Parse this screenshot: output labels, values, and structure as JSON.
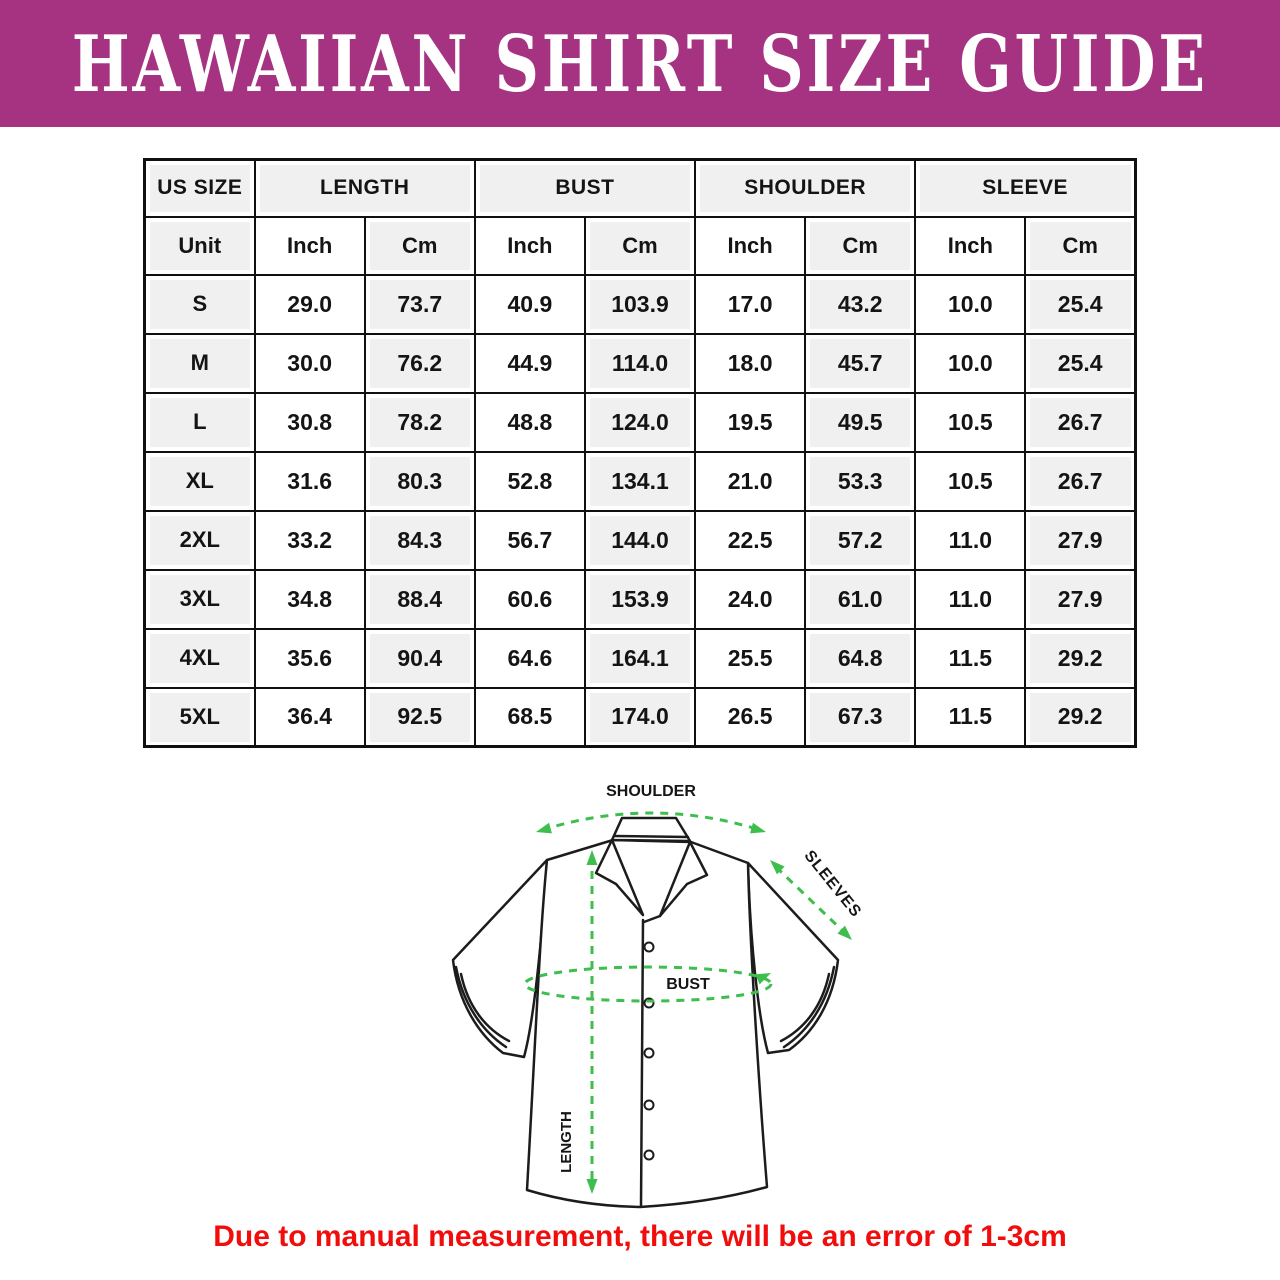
{
  "banner": {
    "title": "HAWAIIAN SHIRT SIZE GUIDE",
    "bg_color": "#a53381",
    "text_color": "#ffffff"
  },
  "table": {
    "groups": [
      {
        "label": "US SIZE",
        "span": 1
      },
      {
        "label": "LENGTH",
        "span": 2
      },
      {
        "label": "BUST",
        "span": 2
      },
      {
        "label": "SHOULDER",
        "span": 2
      },
      {
        "label": "SLEEVE",
        "span": 2
      }
    ],
    "unit_row": [
      "Unit",
      "Inch",
      "Cm",
      "Inch",
      "Cm",
      "Inch",
      "Cm",
      "Inch",
      "Cm"
    ],
    "rows": [
      {
        "size": "S",
        "values": [
          "29.0",
          "73.7",
          "40.9",
          "103.9",
          "17.0",
          "43.2",
          "10.0",
          "25.4"
        ]
      },
      {
        "size": "M",
        "values": [
          "30.0",
          "76.2",
          "44.9",
          "114.0",
          "18.0",
          "45.7",
          "10.0",
          "25.4"
        ]
      },
      {
        "size": "L",
        "values": [
          "30.8",
          "78.2",
          "48.8",
          "124.0",
          "19.5",
          "49.5",
          "10.5",
          "26.7"
        ]
      },
      {
        "size": "XL",
        "values": [
          "31.6",
          "80.3",
          "52.8",
          "134.1",
          "21.0",
          "53.3",
          "10.5",
          "26.7"
        ]
      },
      {
        "size": "2XL",
        "values": [
          "33.2",
          "84.3",
          "56.7",
          "144.0",
          "22.5",
          "57.2",
          "11.0",
          "27.9"
        ]
      },
      {
        "size": "3XL",
        "values": [
          "34.8",
          "88.4",
          "60.6",
          "153.9",
          "24.0",
          "61.0",
          "11.0",
          "27.9"
        ]
      },
      {
        "size": "4XL",
        "values": [
          "35.6",
          "90.4",
          "64.6",
          "164.1",
          "25.5",
          "64.8",
          "11.5",
          "29.2"
        ]
      },
      {
        "size": "5XL",
        "values": [
          "36.4",
          "92.5",
          "68.5",
          "174.0",
          "26.5",
          "67.3",
          "11.5",
          "29.2"
        ]
      }
    ],
    "shade_color": "#f0f0f0",
    "border_color": "#101010"
  },
  "chart_data": {
    "type": "table",
    "title": "Hawaiian Shirt Size Guide",
    "columns": [
      "US SIZE",
      "LENGTH Inch",
      "LENGTH Cm",
      "BUST Inch",
      "BUST Cm",
      "SHOULDER Inch",
      "SHOULDER Cm",
      "SLEEVE Inch",
      "SLEEVE Cm"
    ],
    "rows": [
      [
        "S",
        29.0,
        73.7,
        40.9,
        103.9,
        17.0,
        43.2,
        10.0,
        25.4
      ],
      [
        "M",
        30.0,
        76.2,
        44.9,
        114.0,
        18.0,
        45.7,
        10.0,
        25.4
      ],
      [
        "L",
        30.8,
        78.2,
        48.8,
        124.0,
        19.5,
        49.5,
        10.5,
        26.7
      ],
      [
        "XL",
        31.6,
        80.3,
        52.8,
        134.1,
        21.0,
        53.3,
        10.5,
        26.7
      ],
      [
        "2XL",
        33.2,
        84.3,
        56.7,
        144.0,
        22.5,
        57.2,
        11.0,
        27.9
      ],
      [
        "3XL",
        34.8,
        88.4,
        60.6,
        153.9,
        24.0,
        61.0,
        11.0,
        27.9
      ],
      [
        "4XL",
        35.6,
        90.4,
        64.6,
        164.1,
        25.5,
        64.8,
        11.5,
        29.2
      ],
      [
        "5XL",
        36.4,
        92.5,
        68.5,
        174.0,
        26.5,
        67.3,
        11.5,
        29.2
      ]
    ]
  },
  "diagram": {
    "labels": {
      "shoulder": "SHOULDER",
      "sleeves": "SLEEVES",
      "bust": "BUST",
      "length": "LENGTH"
    },
    "accent_color": "#3dbe4d",
    "line_color": "#1c1c1c"
  },
  "note": {
    "text": "Due to manual measurement, there will be an error of 1-3cm",
    "color": "#f20d0d"
  }
}
